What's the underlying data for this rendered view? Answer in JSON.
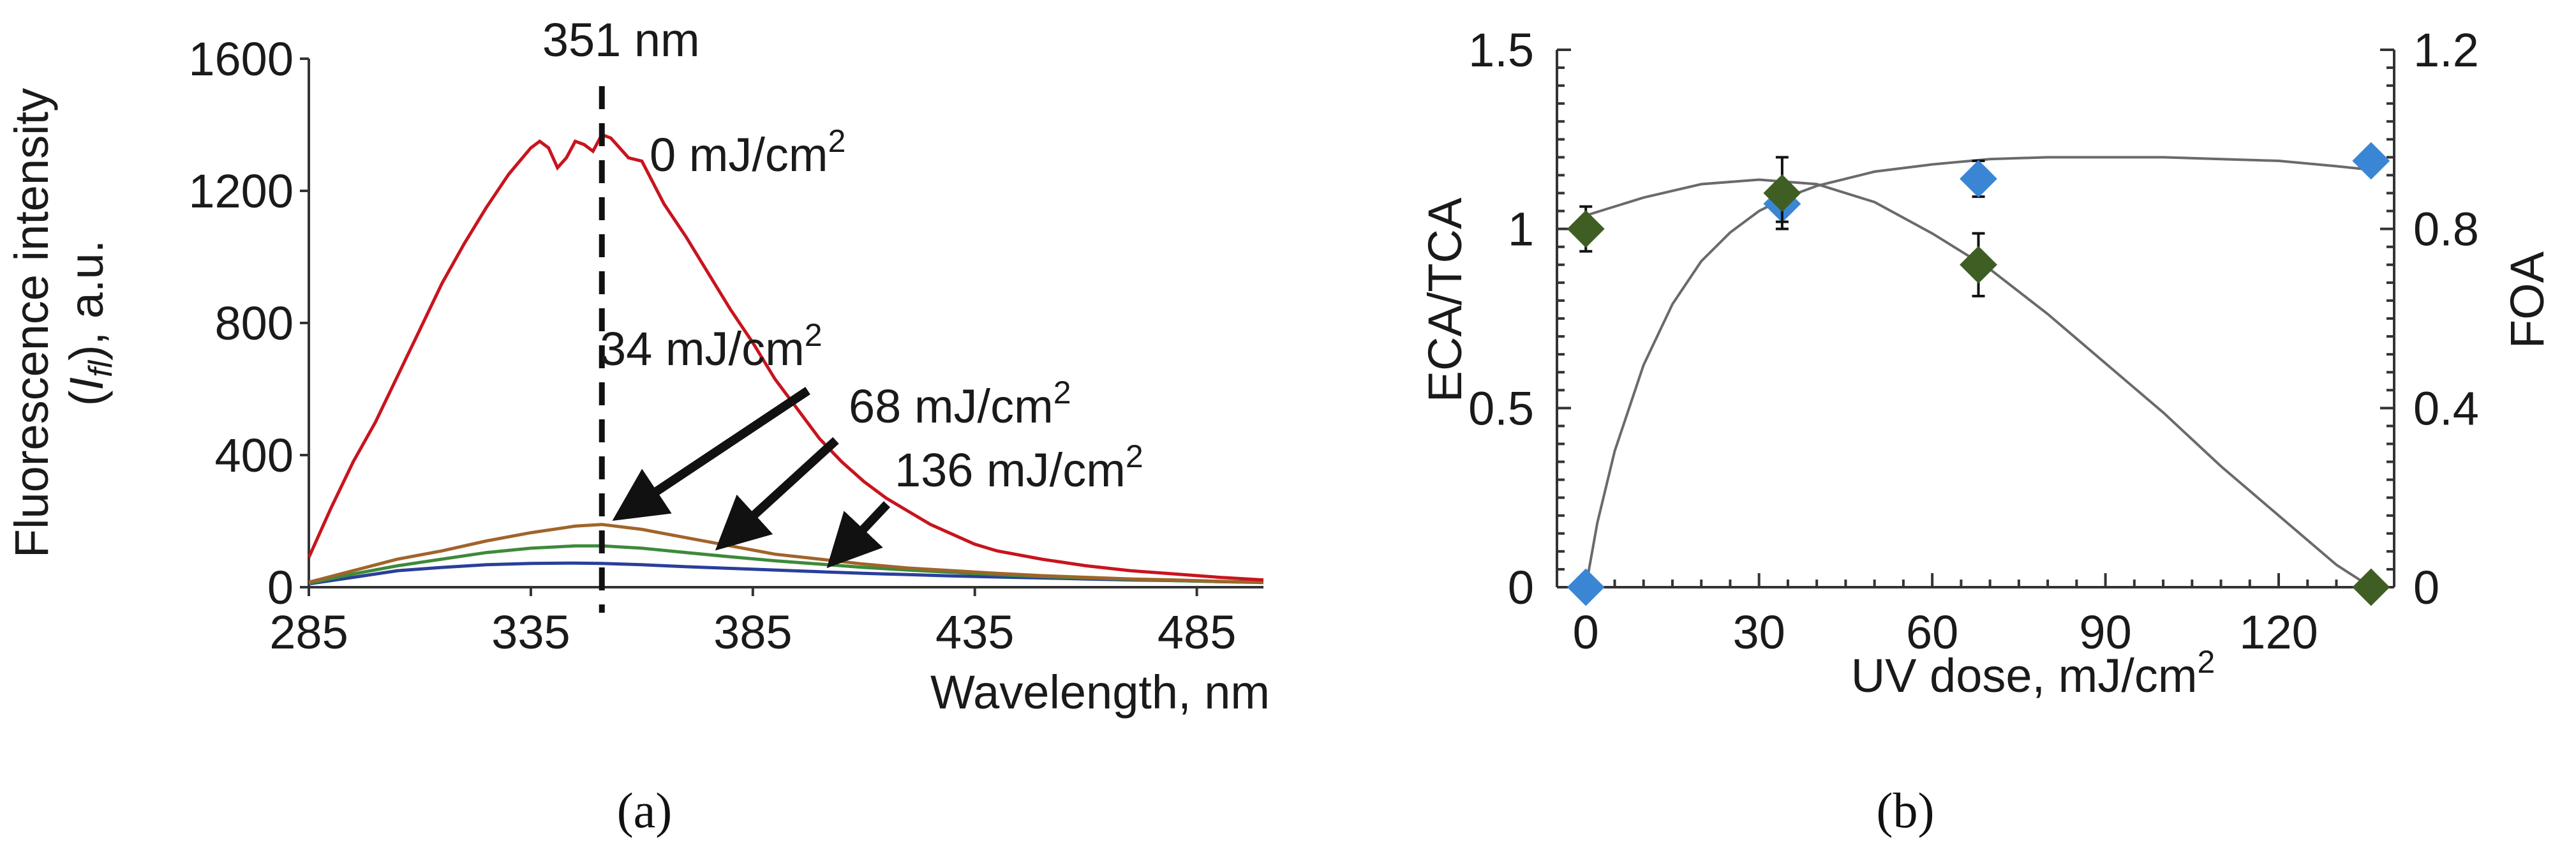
{
  "chart_data": [
    {
      "type": "line",
      "panel_label": "(a)",
      "xlabel": "Wavelength, nm",
      "ylabel": "Fluorescence intensity (I_fl), a.u.",
      "ylabel_line1": "Fluorescence intensity",
      "ylabel_line2_pre": "(I",
      "ylabel_line2_sub": "fl",
      "ylabel_line2_post": "), a.u.",
      "xlim": [
        285,
        500
      ],
      "ylim": [
        0,
        1600
      ],
      "xticks": [
        285,
        335,
        385,
        435,
        485
      ],
      "yticks": [
        0,
        400,
        800,
        1200,
        1600
      ],
      "marker_line": {
        "x": 351,
        "label": "351 nm"
      },
      "series": [
        {
          "name": "0 mJ/cm2",
          "label_main": "0 mJ/cm",
          "label_sup": "2",
          "color": "#c8141e",
          "x": [
            285,
            290,
            295,
            300,
            305,
            310,
            315,
            320,
            325,
            330,
            335,
            337,
            339,
            341,
            343,
            345,
            347,
            349,
            351,
            353,
            355,
            357,
            360,
            365,
            370,
            375,
            380,
            385,
            390,
            395,
            400,
            405,
            410,
            415,
            420,
            425,
            430,
            435,
            440,
            450,
            460,
            470,
            480,
            490,
            500
          ],
          "y": [
            90,
            240,
            380,
            500,
            640,
            780,
            920,
            1040,
            1150,
            1250,
            1330,
            1350,
            1330,
            1270,
            1300,
            1350,
            1340,
            1320,
            1370,
            1360,
            1330,
            1300,
            1290,
            1160,
            1060,
            950,
            840,
            740,
            630,
            540,
            450,
            380,
            320,
            270,
            230,
            190,
            160,
            130,
            110,
            85,
            65,
            50,
            40,
            30,
            22
          ]
        },
        {
          "name": "34 mJ/cm2",
          "color": "#a0642a",
          "x": [
            285,
            295,
            305,
            315,
            325,
            335,
            345,
            351,
            360,
            370,
            380,
            390,
            400,
            410,
            420,
            430,
            440,
            450,
            460,
            470,
            480,
            490,
            500
          ],
          "y": [
            15,
            50,
            85,
            110,
            140,
            165,
            185,
            190,
            175,
            150,
            125,
            100,
            85,
            70,
            58,
            50,
            42,
            35,
            30,
            25,
            22,
            18,
            15
          ]
        },
        {
          "name": "68 mJ/cm2",
          "color": "#3d8a3a",
          "x": [
            285,
            295,
            305,
            315,
            325,
            335,
            345,
            351,
            360,
            370,
            380,
            390,
            400,
            410,
            420,
            430,
            440,
            450,
            460,
            470,
            480,
            490,
            500
          ],
          "y": [
            12,
            40,
            65,
            85,
            105,
            118,
            125,
            125,
            118,
            105,
            92,
            80,
            70,
            60,
            52,
            45,
            38,
            32,
            28,
            24,
            20,
            17,
            14
          ]
        },
        {
          "name": "136 mJ/cm2",
          "color": "#2a3f9a",
          "x": [
            285,
            295,
            305,
            315,
            325,
            335,
            345,
            351,
            360,
            370,
            380,
            390,
            400,
            410,
            420,
            430,
            440,
            450,
            460,
            470,
            480,
            490,
            500
          ],
          "y": [
            10,
            30,
            50,
            60,
            68,
            72,
            73,
            72,
            68,
            62,
            57,
            52,
            47,
            42,
            38,
            34,
            31,
            28,
            25,
            22,
            20,
            17,
            15
          ]
        }
      ],
      "annotations": [
        {
          "text_main": "0 mJ/cm",
          "text_sup": "2",
          "points_to": {
            "x": 351,
            "y": 1370
          }
        },
        {
          "text_main": "34 mJ/cm",
          "text_sup": "2",
          "points_to": {
            "x": 353,
            "y": 185
          }
        },
        {
          "text_main": "68 mJ/cm",
          "text_sup": "2",
          "points_to": {
            "x": 376,
            "y": 110
          }
        },
        {
          "text_main": "136 mJ/cm",
          "text_sup": "2",
          "points_to": {
            "x": 401,
            "y": 58
          }
        }
      ],
      "grid": false,
      "legend": "none"
    },
    {
      "type": "scatter",
      "panel_label": "(b)",
      "xlabel": "UV dose, mJ/cm2",
      "xlabel_main": "UV dose, mJ/cm",
      "xlabel_sup": "2",
      "ylabel": "ECA/TCA",
      "y2label": "FOA",
      "xlim": [
        -5,
        140
      ],
      "ylim": [
        0,
        1.5
      ],
      "y2lim": [
        0,
        1.2
      ],
      "xticks": [
        0,
        30,
        60,
        90,
        120
      ],
      "yticks": [
        "0",
        "0.5",
        "1",
        "1.5"
      ],
      "y2ticks": [
        "0",
        "0.4",
        "0.8",
        "1.2"
      ],
      "series": [
        {
          "name": "",
          "axis": "left",
          "color": "#3b86d4",
          "marker": "diamond",
          "x": [
            0,
            34,
            68,
            136
          ],
          "y": [
            0,
            1.07,
            1.14,
            1.19
          ],
          "err": [
            0,
            0.05,
            0.05,
            0.02
          ],
          "fit_x": [
            0,
            2,
            5,
            10,
            15,
            20,
            25,
            30,
            35,
            40,
            50,
            60,
            70,
            80,
            90,
            100,
            110,
            120,
            130,
            136
          ],
          "fit_y": [
            0,
            0.18,
            0.38,
            0.62,
            0.79,
            0.91,
            0.99,
            1.05,
            1.09,
            1.12,
            1.16,
            1.18,
            1.195,
            1.2,
            1.2,
            1.2,
            1.195,
            1.19,
            1.175,
            1.165
          ]
        },
        {
          "name": "",
          "axis": "right",
          "color": "#3f5e24",
          "marker": "diamond",
          "x": [
            0,
            34,
            68,
            136
          ],
          "y": [
            0.8,
            0.88,
            0.72,
            0
          ],
          "err": [
            0.05,
            0.08,
            0.07,
            0
          ],
          "fit_x": [
            0,
            10,
            20,
            30,
            40,
            50,
            60,
            70,
            80,
            90,
            100,
            110,
            120,
            130,
            136
          ],
          "fit_y": [
            0.83,
            0.87,
            0.9,
            0.91,
            0.9,
            0.86,
            0.79,
            0.71,
            0.61,
            0.5,
            0.39,
            0.27,
            0.16,
            0.05,
            0
          ]
        }
      ],
      "grid": false,
      "legend": "none"
    }
  ]
}
